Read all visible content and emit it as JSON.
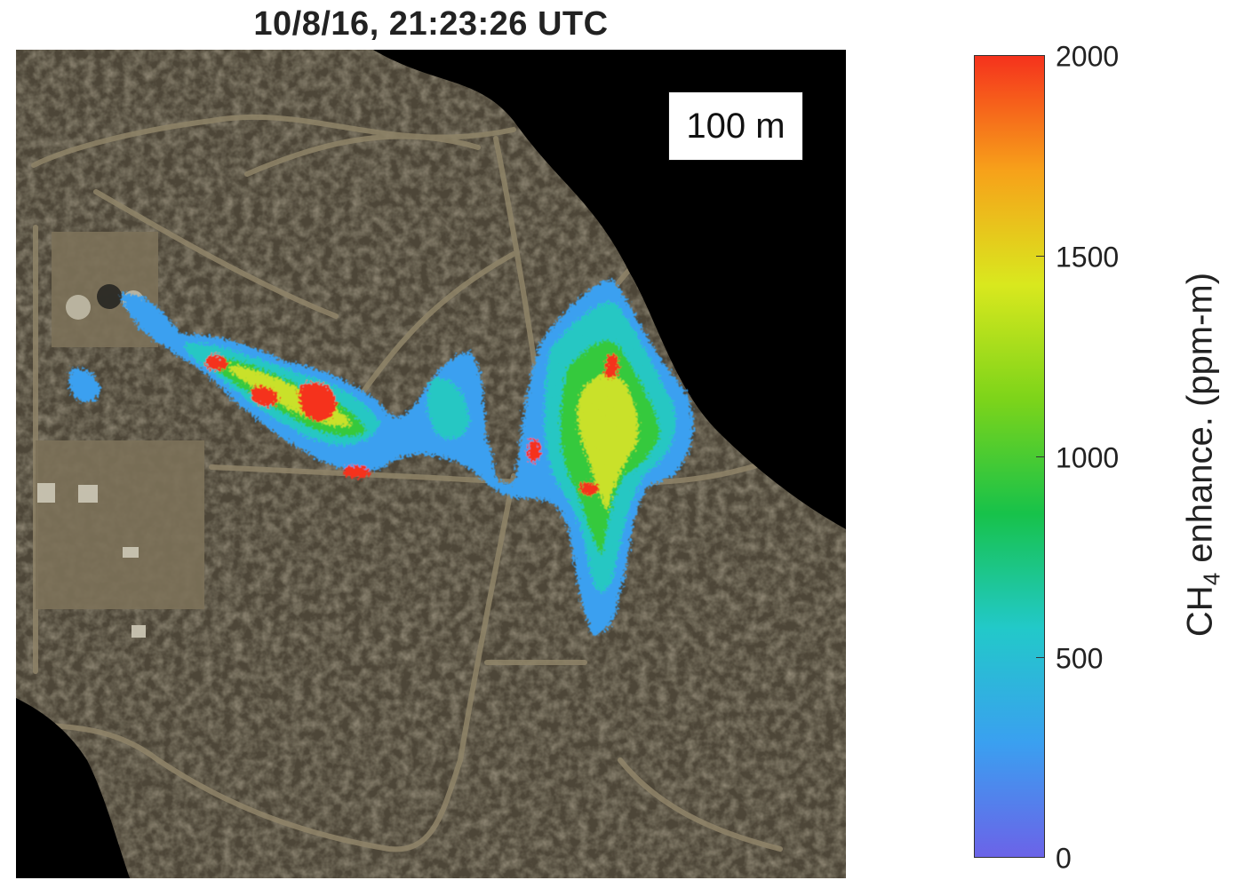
{
  "title": "10/8/16, 21:23:26 UTC",
  "scale_bar": {
    "label": "100 m"
  },
  "colorbar": {
    "label_prefix": "CH",
    "label_subscript": "4",
    "label_suffix": " enhance. (ppm-m)",
    "ticks": [
      "2000",
      "1500",
      "1000",
      "500",
      "0"
    ],
    "range": [
      0,
      2000
    ],
    "colors": [
      "#6b63e8",
      "#3aa0f0",
      "#22c9c9",
      "#17c24a",
      "#7dd41a",
      "#d9e81e",
      "#f7a11a",
      "#f5321c"
    ]
  },
  "map": {
    "background_color": "#4a4436",
    "nodata_color": "#000000",
    "plume_colors": [
      "#3aa0f0",
      "#26c7c3",
      "#36c93e",
      "#c9e12a",
      "#f5321c"
    ]
  }
}
